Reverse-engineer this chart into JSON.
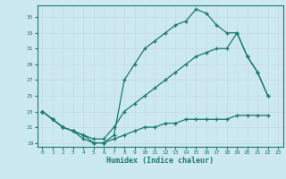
{
  "xlabel": "Humidex (Indice chaleur)",
  "bg_color": "#cce8f0",
  "line_color": "#1a7a6e",
  "grid_color": "#c8dde4",
  "xlim": [
    -0.5,
    23.5
  ],
  "ylim": [
    18.5,
    36.5
  ],
  "xticks": [
    0,
    1,
    2,
    3,
    4,
    5,
    6,
    7,
    8,
    9,
    10,
    11,
    12,
    13,
    14,
    15,
    16,
    17,
    18,
    19,
    20,
    21,
    22,
    23
  ],
  "yticks": [
    19,
    21,
    23,
    25,
    27,
    29,
    31,
    33,
    35
  ],
  "line1_x": [
    0,
    1,
    2,
    3,
    4,
    5,
    6,
    7,
    8,
    9,
    10,
    11,
    12,
    13,
    14,
    15,
    16,
    17,
    18,
    19,
    20,
    21,
    22
  ],
  "line1_y": [
    23,
    22,
    21,
    20.5,
    20,
    19,
    19,
    20,
    27,
    29,
    31,
    32,
    33,
    34,
    34.5,
    36,
    35.5,
    34,
    33,
    33,
    30,
    28,
    25
  ],
  "line2_x": [
    0,
    1,
    2,
    3,
    4,
    5,
    6,
    7,
    8,
    9,
    10,
    11,
    12,
    13,
    14,
    15,
    16,
    17,
    18,
    19,
    20,
    21,
    22
  ],
  "line2_y": [
    23,
    22,
    21,
    20.5,
    20,
    19.5,
    19.5,
    21,
    23,
    24,
    25,
    26,
    27,
    28,
    29,
    30,
    30.5,
    31,
    31,
    33,
    30,
    28,
    25
  ],
  "line3_x": [
    0,
    1,
    2,
    3,
    4,
    5,
    6,
    7,
    8,
    9,
    10,
    11,
    12,
    13,
    14,
    15,
    16,
    17,
    18,
    19,
    20,
    21,
    22
  ],
  "line3_y": [
    23,
    22,
    21,
    20.5,
    19.5,
    19,
    19,
    19.5,
    20,
    20.5,
    21,
    21,
    21.5,
    21.5,
    22,
    22,
    22,
    22,
    22,
    22.5,
    22.5,
    22.5,
    22.5
  ]
}
